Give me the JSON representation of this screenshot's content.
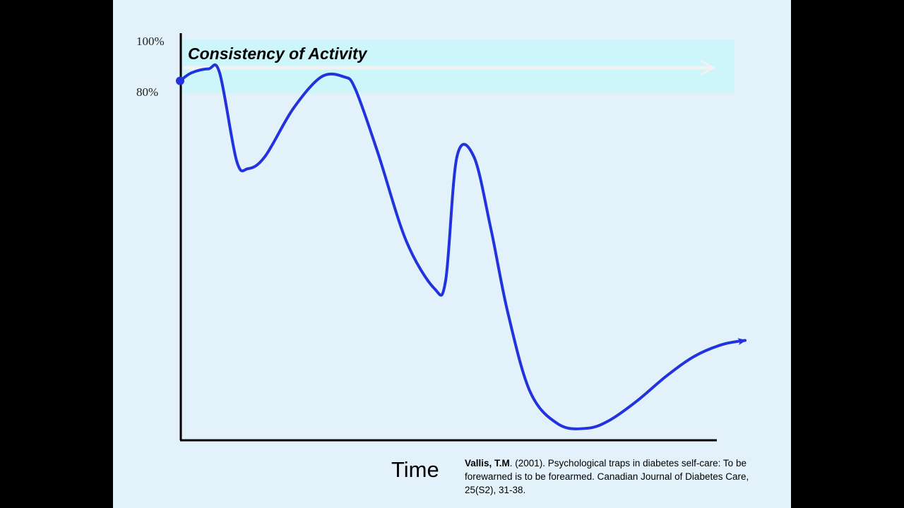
{
  "chart_data": {
    "type": "line",
    "title": "Consistency of Activity",
    "xlabel": "Time",
    "ylabel": "",
    "yticks": [
      "100%",
      "80%"
    ],
    "ylim": [
      0,
      100
    ],
    "xlim": [
      0,
      100
    ],
    "grid": false,
    "highlight_band": {
      "label": "Consistency of Activity",
      "range": [
        80,
        100
      ]
    },
    "series": [
      {
        "name": "",
        "color": "#2233dd",
        "x": [
          0,
          2,
          5,
          7,
          10,
          12,
          15,
          20,
          25,
          29,
          31,
          35,
          40,
          45,
          47,
          49,
          52,
          55,
          58,
          62,
          67,
          72,
          76,
          81,
          86,
          91,
          96,
          100
        ],
        "y": [
          90,
          92,
          93,
          92,
          70,
          68,
          71,
          83,
          91,
          91,
          88,
          72,
          50,
          38,
          40,
          71,
          71,
          53,
          32,
          12,
          4,
          3,
          5,
          10,
          16,
          21,
          24,
          25
        ]
      }
    ]
  },
  "citation": {
    "author": "Vallis, T.M",
    "rest": ". (2001). Psychological traps in diabetes self-care: To be forewarned is to be forearmed. Canadian  Journal of Diabetes Care, 25(S2), 31-38."
  },
  "colors": {
    "background": "#e3f1fa",
    "band": "#cdf6fb",
    "line": "#2233dd",
    "band_arrow": "#f2f2f2",
    "axes": "#000000"
  }
}
